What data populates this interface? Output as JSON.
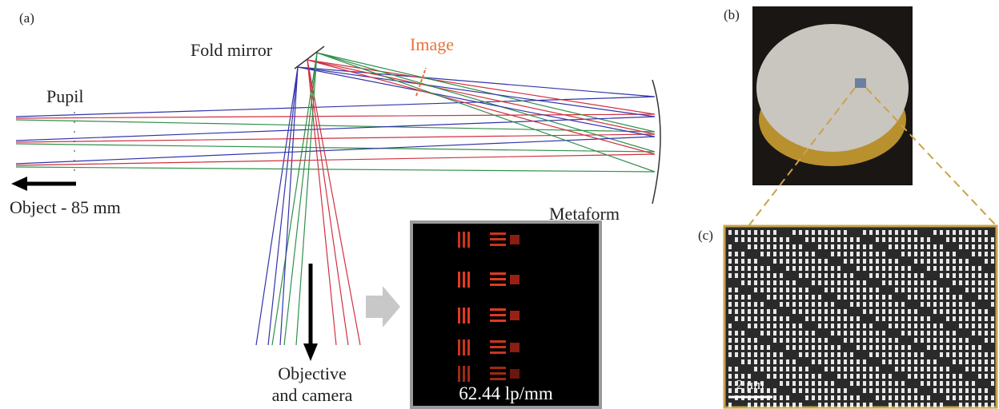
{
  "panel_a": {
    "label": "(a)",
    "fold_mirror": "Fold mirror",
    "image": "Image",
    "pupil": "Pupil",
    "object": "Object - 85 mm",
    "metaform": "Metaform",
    "objective": [
      "Objective",
      "and camera"
    ],
    "resolution": "62.44 lp/mm"
  },
  "panel_b": {
    "label": "(b)"
  },
  "panel_c": {
    "label": "(c)",
    "scale_bar": "2 μm"
  }
}
